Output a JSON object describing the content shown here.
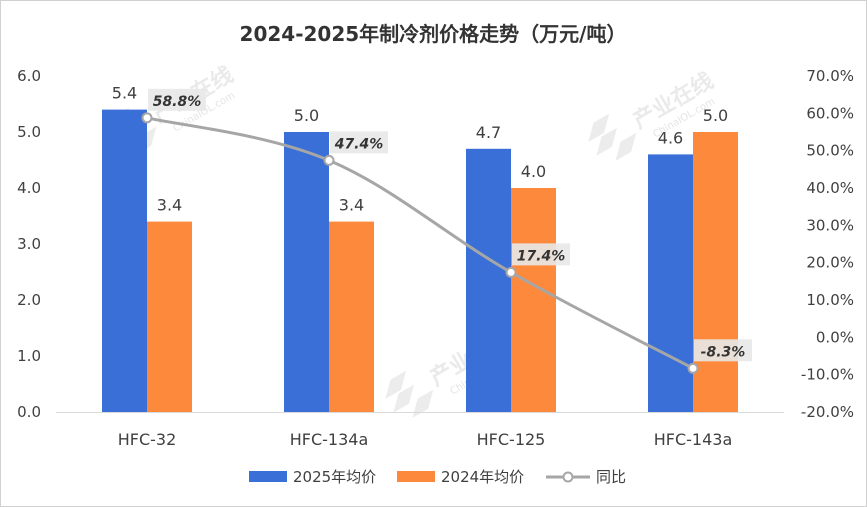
{
  "chart_data": {
    "type": "bar",
    "title": "2024-2025年制冷剂价格走势（万元/吨）",
    "categories": [
      "HFC-32",
      "HFC-134a",
      "HFC-125",
      "HFC-143a"
    ],
    "series": [
      {
        "name": "2025年均价",
        "type": "bar",
        "color": "#3a6fd8",
        "values": [
          5.4,
          5.0,
          4.7,
          4.6
        ],
        "labels": [
          "5.4",
          "5.0",
          "4.7",
          "4.6"
        ]
      },
      {
        "name": "2024年均价",
        "type": "bar",
        "color": "#fd8a3c",
        "values": [
          3.4,
          3.4,
          4.0,
          5.0
        ],
        "labels": [
          "3.4",
          "3.4",
          "4.0",
          "5.0"
        ]
      },
      {
        "name": "同比",
        "type": "line",
        "color": "#a6a6a6",
        "axis": "right",
        "values": [
          58.8,
          47.4,
          17.4,
          -8.3
        ],
        "labels": [
          "58.8%",
          "47.4%",
          "17.4%",
          "-8.3%"
        ]
      }
    ],
    "left_axis": {
      "ylim": [
        0,
        6
      ],
      "ticks": [
        0,
        1,
        2,
        3,
        4,
        5,
        6
      ],
      "tick_labels": [
        "0.0",
        "1.0",
        "2.0",
        "3.0",
        "4.0",
        "5.0",
        "6.0"
      ]
    },
    "right_axis": {
      "ylim": [
        -20,
        70
      ],
      "ticks": [
        -20,
        -10,
        0,
        10,
        20,
        30,
        40,
        50,
        60,
        70
      ],
      "tick_labels": [
        "-20.0%",
        "-10.0%",
        "0.0%",
        "10.0%",
        "20.0%",
        "30.0%",
        "40.0%",
        "50.0%",
        "60.0%",
        "70.0%"
      ]
    },
    "grid": false,
    "legend_position": "bottom"
  },
  "watermark": {
    "text": "产业在线",
    "subtext": "ChinaIOL.com"
  }
}
